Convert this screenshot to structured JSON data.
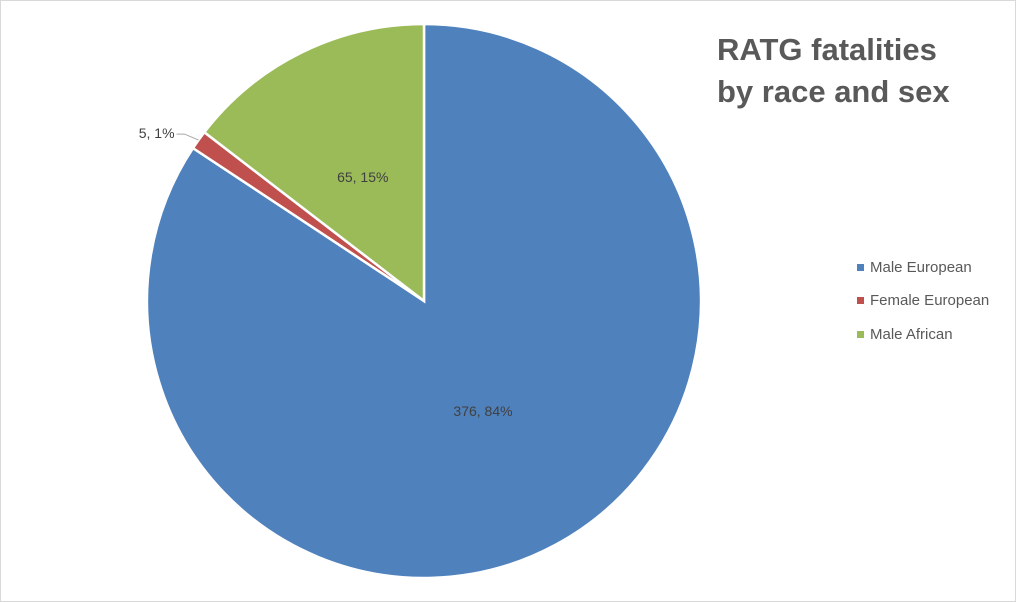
{
  "chart_data": {
    "type": "pie",
    "title_lines": [
      "RATG fatalities",
      "by race and sex"
    ],
    "categories": [
      "Male European",
      "Female European",
      "Male African"
    ],
    "values": [
      376,
      5,
      65
    ],
    "percent_labels": [
      "84%",
      "1%",
      "15%"
    ],
    "data_labels": [
      "376, 84%",
      "5, 1%",
      "65, 15%"
    ],
    "colors": [
      "#4f81bd",
      "#c0504d",
      "#9bbb59"
    ],
    "start_angle": "12 o'clock",
    "direction": "clockwise",
    "legend_position": "right"
  }
}
